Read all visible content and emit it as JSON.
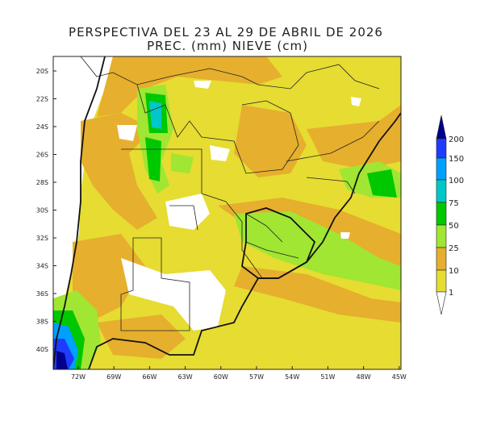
{
  "header": {
    "title": "PERSPECTIVA DEL 23 AL 29 DE ABRIL DE 2026",
    "subtitle": "PREC. (mm) NIEVE (cm)"
  },
  "map": {
    "lat_labels": [
      "20S",
      "22S",
      "24S",
      "26S",
      "28S",
      "30S",
      "32S",
      "34S",
      "36S",
      "38S",
      "40S"
    ],
    "lon_labels": [
      "72W",
      "69W",
      "66W",
      "63W",
      "60W",
      "57W",
      "54W",
      "51W",
      "48W",
      "45W"
    ]
  },
  "colorbar": {
    "labels": [
      200,
      150,
      100,
      75,
      50,
      25,
      10,
      1
    ]
  }
}
